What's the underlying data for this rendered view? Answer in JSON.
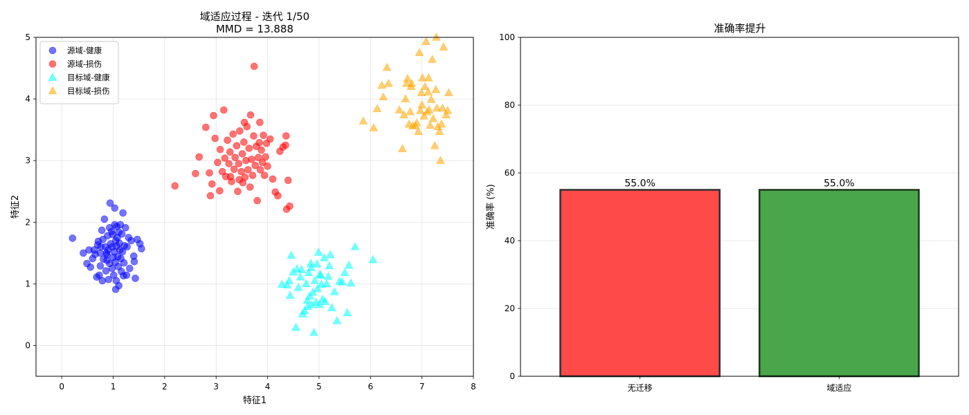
{
  "chart_data": [
    {
      "type": "scatter",
      "title": "域适应过程 - 迭代 1/50",
      "subtitle": "MMD = 13.888",
      "xlabel": "特征1",
      "ylabel": "特征2",
      "xlim": [
        -0.5,
        8
      ],
      "ylim": [
        -0.5,
        5
      ],
      "xticks": [
        0,
        1,
        2,
        3,
        4,
        5,
        6,
        7,
        8
      ],
      "yticks": [
        0,
        1,
        2,
        3,
        4,
        5
      ],
      "grid": true,
      "legend_position": "top-left",
      "series": [
        {
          "name": "源域-健康",
          "marker": "circle",
          "color": "#0000ff",
          "points": [
            [
              0.21,
              1.74
            ],
            [
              0.42,
              1.5
            ],
            [
              0.49,
              1.33
            ],
            [
              0.53,
              1.55
            ],
            [
              0.56,
              1.27
            ],
            [
              0.6,
              1.41
            ],
            [
              0.63,
              1.55
            ],
            [
              0.68,
              1.11
            ],
            [
              0.7,
              1.63
            ],
            [
              0.71,
              1.69
            ],
            [
              0.73,
              1.14
            ],
            [
              0.75,
              1.29
            ],
            [
              0.75,
              1.5
            ],
            [
              0.76,
              1.6
            ],
            [
              0.78,
              1.87
            ],
            [
              0.79,
              1.05
            ],
            [
              0.8,
              1.72
            ],
            [
              0.81,
              1.4
            ],
            [
              0.83,
              2.05
            ],
            [
              0.85,
              1.6
            ],
            [
              0.86,
              1.21
            ],
            [
              0.88,
              1.38
            ],
            [
              0.88,
              1.47
            ],
            [
              0.89,
              1.78
            ],
            [
              0.9,
              1.55
            ],
            [
              0.91,
              1.07
            ],
            [
              0.93,
              1.33
            ],
            [
              0.93,
              1.91
            ],
            [
              0.94,
              2.31
            ],
            [
              0.95,
              1.65
            ],
            [
              0.97,
              1.85
            ],
            [
              0.98,
              1.25
            ],
            [
              0.98,
              1.6
            ],
            [
              1.0,
              1.43
            ],
            [
              1.01,
              1.14
            ],
            [
              1.02,
              1.52
            ],
            [
              1.03,
              1.96
            ],
            [
              1.03,
              2.23
            ],
            [
              1.04,
              1.35
            ],
            [
              1.05,
              0.91
            ],
            [
              1.05,
              1.7
            ],
            [
              1.06,
              1.05
            ],
            [
              1.07,
              1.61
            ],
            [
              1.08,
              1.75
            ],
            [
              1.09,
              1.44
            ],
            [
              1.1,
              1.28
            ],
            [
              1.11,
              1.84
            ],
            [
              1.11,
              0.97
            ],
            [
              1.12,
              1.66
            ],
            [
              1.13,
              1.55
            ],
            [
              1.14,
              1.96
            ],
            [
              1.15,
              1.41
            ],
            [
              1.16,
              1.2
            ],
            [
              1.17,
              1.81
            ],
            [
              1.18,
              1.52
            ],
            [
              1.19,
              2.15
            ],
            [
              1.21,
              1.34
            ],
            [
              1.22,
              1.62
            ],
            [
              1.24,
              1.91
            ],
            [
              1.26,
              1.14
            ],
            [
              1.27,
              1.6
            ],
            [
              1.3,
              1.75
            ],
            [
              1.32,
              1.25
            ],
            [
              1.35,
              1.7
            ],
            [
              1.4,
              1.45
            ],
            [
              1.43,
              1.09
            ],
            [
              1.47,
              1.72
            ],
            [
              1.52,
              1.65
            ],
            [
              1.55,
              1.57
            ],
            [
              1.41,
              1.36
            ],
            [
              0.99,
              1.8
            ],
            [
              1.07,
              1.93
            ],
            [
              0.87,
              1.5
            ],
            [
              1.2,
              1.13
            ],
            [
              0.65,
              1.48
            ]
          ]
        },
        {
          "name": "源域-损伤",
          "marker": "circle",
          "color": "#ff0000",
          "points": [
            [
              2.2,
              2.59
            ],
            [
              2.6,
              2.79
            ],
            [
              2.67,
              3.06
            ],
            [
              2.8,
              3.54
            ],
            [
              2.87,
              2.8
            ],
            [
              2.89,
              2.43
            ],
            [
              2.92,
              2.62
            ],
            [
              2.95,
              3.73
            ],
            [
              2.98,
              3.36
            ],
            [
              3.03,
              2.97
            ],
            [
              3.07,
              2.51
            ],
            [
              3.08,
              3.18
            ],
            [
              3.12,
              2.82
            ],
            [
              3.15,
              3.82
            ],
            [
              3.17,
              3.04
            ],
            [
              3.19,
              2.74
            ],
            [
              3.22,
              3.33
            ],
            [
              3.25,
              2.95
            ],
            [
              3.27,
              3.14
            ],
            [
              3.3,
              2.66
            ],
            [
              3.33,
              3.43
            ],
            [
              3.35,
              2.86
            ],
            [
              3.37,
              3.05
            ],
            [
              3.4,
              3.24
            ],
            [
              3.42,
              2.5
            ],
            [
              3.44,
              2.95
            ],
            [
              3.46,
              3.48
            ],
            [
              3.49,
              2.82
            ],
            [
              3.51,
              3.11
            ],
            [
              3.52,
              2.64
            ],
            [
              3.54,
              3.3
            ],
            [
              3.56,
              2.73
            ],
            [
              3.58,
              3.0
            ],
            [
              3.6,
              3.55
            ],
            [
              3.62,
              2.85
            ],
            [
              3.64,
              3.2
            ],
            [
              3.66,
              2.57
            ],
            [
              3.67,
              3.74
            ],
            [
              3.69,
              3.02
            ],
            [
              3.71,
              2.76
            ],
            [
              3.73,
              3.4
            ],
            [
              3.74,
              4.53
            ],
            [
              3.76,
              2.92
            ],
            [
              3.78,
              3.23
            ],
            [
              3.8,
              2.35
            ],
            [
              3.82,
              3.05
            ],
            [
              3.84,
              3.29
            ],
            [
              3.86,
              2.85
            ],
            [
              3.88,
              3.17
            ],
            [
              3.9,
              2.97
            ],
            [
              3.92,
              3.41
            ],
            [
              3.94,
              2.76
            ],
            [
              3.96,
              3.06
            ],
            [
              3.98,
              3.28
            ],
            [
              4.0,
              2.91
            ],
            [
              4.05,
              3.35
            ],
            [
              4.1,
              2.7
            ],
            [
              4.15,
              2.49
            ],
            [
              4.2,
              2.43
            ],
            [
              4.24,
              3.15
            ],
            [
              4.3,
              3.22
            ],
            [
              4.35,
              3.25
            ],
            [
              4.36,
              3.4
            ],
            [
              4.37,
              2.21
            ],
            [
              4.4,
              2.68
            ],
            [
              4.43,
              2.26
            ],
            [
              3.55,
              3.62
            ],
            [
              3.45,
              2.69
            ],
            [
              3.28,
              2.74
            ],
            [
              3.85,
              3.62
            ]
          ]
        },
        {
          "name": "目标域-健康",
          "marker": "triangle",
          "color": "#00ffff",
          "points": [
            [
              4.28,
              0.99
            ],
            [
              4.38,
              0.98
            ],
            [
              4.42,
              1.05
            ],
            [
              4.44,
              0.81
            ],
            [
              4.46,
              1.46
            ],
            [
              4.5,
              1.19
            ],
            [
              4.55,
              0.29
            ],
            [
              4.57,
              1.24
            ],
            [
              4.6,
              0.94
            ],
            [
              4.64,
              1.11
            ],
            [
              4.66,
              1.23
            ],
            [
              4.68,
              0.51
            ],
            [
              4.72,
              0.56
            ],
            [
              4.75,
              1.0
            ],
            [
              4.77,
              0.73
            ],
            [
              4.78,
              0.63
            ],
            [
              4.8,
              1.18
            ],
            [
              4.82,
              0.8
            ],
            [
              4.85,
              1.26
            ],
            [
              4.86,
              0.66
            ],
            [
              4.88,
              0.86
            ],
            [
              4.9,
              0.21
            ],
            [
              4.92,
              1.05
            ],
            [
              4.94,
              0.7
            ],
            [
              4.96,
              1.32
            ],
            [
              4.97,
              0.92
            ],
            [
              4.99,
              1.51
            ],
            [
              5.01,
              0.66
            ],
            [
              5.03,
              1.14
            ],
            [
              5.05,
              0.99
            ],
            [
              5.07,
              0.75
            ],
            [
              5.1,
              1.42
            ],
            [
              5.12,
              0.71
            ],
            [
              5.15,
              1.0
            ],
            [
              5.18,
              1.12
            ],
            [
              5.2,
              1.29
            ],
            [
              5.22,
              1.47
            ],
            [
              5.25,
              0.61
            ],
            [
              5.3,
              0.87
            ],
            [
              5.35,
              0.4
            ],
            [
              5.4,
              1.04
            ],
            [
              5.45,
              1.03
            ],
            [
              5.5,
              1.18
            ],
            [
              5.55,
              0.53
            ],
            [
              5.58,
              1.3
            ],
            [
              5.62,
              1.01
            ],
            [
              5.7,
              1.6
            ],
            [
              6.05,
              1.39
            ],
            [
              4.84,
              1.33
            ],
            [
              5.02,
              1.15
            ]
          ]
        },
        {
          "name": "目标域-损伤",
          "marker": "triangle",
          "color": "#ffa500",
          "points": [
            [
              5.86,
              3.64
            ],
            [
              6.06,
              3.53
            ],
            [
              6.13,
              3.84
            ],
            [
              6.22,
              4.22
            ],
            [
              6.25,
              4.03
            ],
            [
              6.32,
              4.51
            ],
            [
              6.35,
              4.25
            ],
            [
              6.56,
              3.82
            ],
            [
              6.62,
              3.19
            ],
            [
              6.65,
              3.74
            ],
            [
              6.68,
              4.0
            ],
            [
              6.7,
              4.25
            ],
            [
              6.72,
              4.33
            ],
            [
              6.75,
              3.59
            ],
            [
              6.77,
              3.79
            ],
            [
              6.79,
              4.2
            ],
            [
              6.82,
              3.56
            ],
            [
              6.87,
              3.57
            ],
            [
              6.9,
              3.61
            ],
            [
              6.93,
              3.47
            ],
            [
              6.95,
              4.75
            ],
            [
              6.97,
              3.81
            ],
            [
              6.99,
              4.1
            ],
            [
              7.0,
              3.9
            ],
            [
              7.01,
              4.34
            ],
            [
              7.04,
              3.72
            ],
            [
              7.06,
              4.2
            ],
            [
              7.08,
              4.93
            ],
            [
              7.1,
              3.79
            ],
            [
              7.12,
              4.11
            ],
            [
              7.14,
              3.82
            ],
            [
              7.16,
              3.57
            ],
            [
              7.18,
              3.99
            ],
            [
              7.2,
              4.64
            ],
            [
              7.22,
              3.68
            ],
            [
              7.25,
              3.24
            ],
            [
              7.27,
              4.15
            ],
            [
              7.29,
              3.85
            ],
            [
              7.31,
              3.55
            ],
            [
              7.34,
              3.47
            ],
            [
              7.36,
              3.0
            ],
            [
              7.38,
              3.59
            ],
            [
              7.4,
              3.85
            ],
            [
              7.42,
              4.84
            ],
            [
              7.47,
              3.74
            ],
            [
              7.5,
              3.81
            ],
            [
              7.52,
              4.1
            ],
            [
              7.13,
              4.34
            ],
            [
              6.8,
              4.25
            ],
            [
              7.28,
              5.0
            ]
          ]
        }
      ]
    },
    {
      "type": "bar",
      "title": "准确率提升",
      "xlabel": "",
      "ylabel": "准确率 (%)",
      "ylim": [
        0,
        100
      ],
      "yticks": [
        0,
        20,
        40,
        60,
        80,
        100
      ],
      "grid": true,
      "categories": [
        "无迁移",
        "域适应"
      ],
      "values": [
        55.0,
        55.0
      ],
      "value_labels": [
        "55.0%",
        "55.0%"
      ],
      "colors": [
        "#ff4a4a",
        "#4aa64a"
      ],
      "edge_colors": [
        "#333333",
        "#1e3a1e"
      ]
    }
  ]
}
